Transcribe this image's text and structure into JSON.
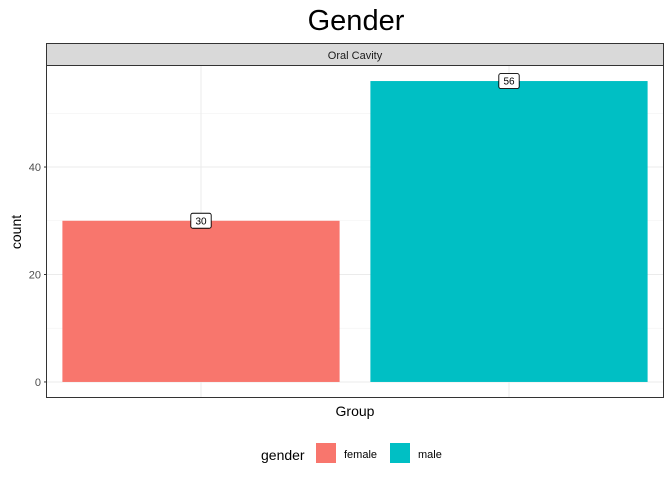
{
  "chart_data": {
    "type": "bar",
    "title": "Gender",
    "facet": "Oral Cavity",
    "xlabel": "Group",
    "ylabel": "count",
    "categories": [
      "female",
      "male"
    ],
    "values": [
      30,
      56
    ],
    "colors": [
      "#F8766D",
      "#00BFC4"
    ],
    "data_labels": [
      "30",
      "56"
    ],
    "y_ticks": [
      0,
      20,
      40
    ],
    "ylim": [
      -2.8,
      58.8
    ],
    "grid": true,
    "legend": {
      "title": "gender",
      "placement": "bottom",
      "items": [
        {
          "label": "female",
          "color": "#F8766D"
        },
        {
          "label": "male",
          "color": "#00BFC4"
        }
      ]
    }
  }
}
